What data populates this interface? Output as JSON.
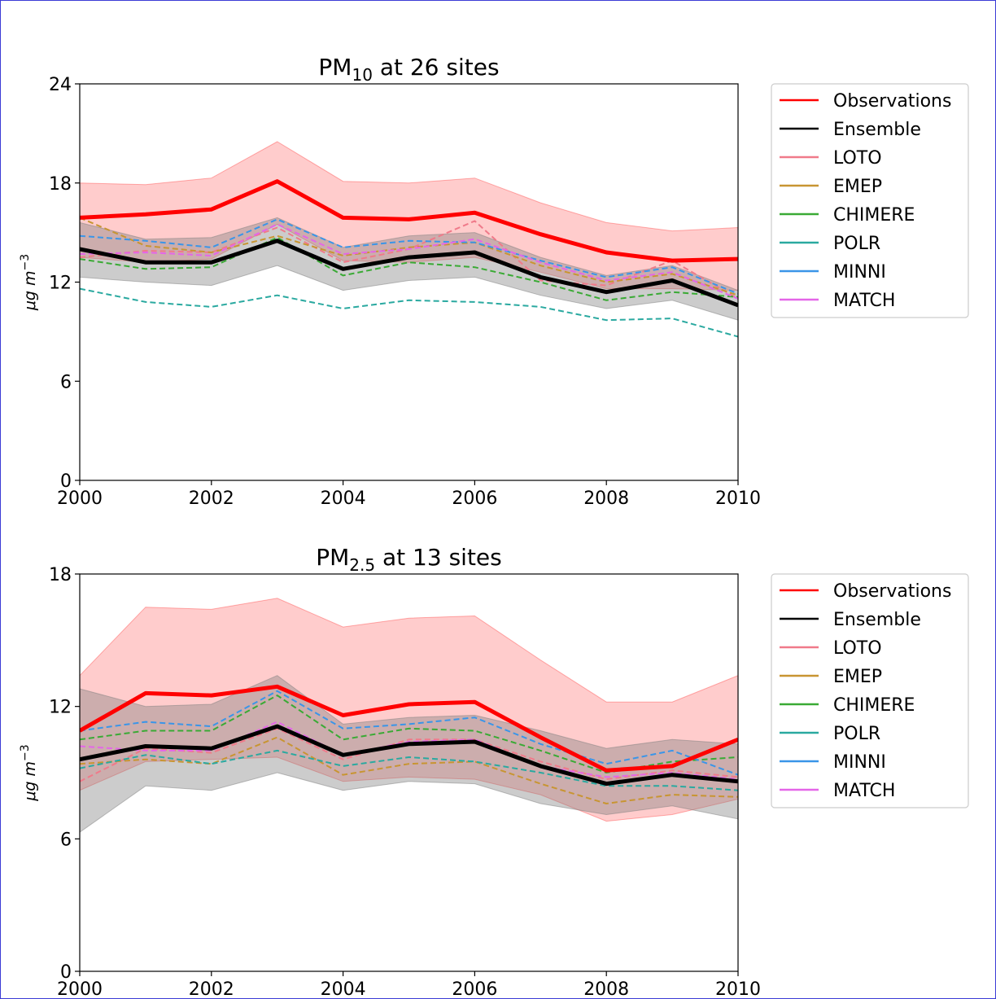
{
  "chart_data": [
    {
      "type": "line",
      "title": {
        "base": "PM",
        "sub": "10",
        "rest": " at 26 sites"
      },
      "ylabel": {
        "base": "μg m",
        "sup": "−3"
      },
      "x": [
        2000,
        2001,
        2002,
        2003,
        2004,
        2005,
        2006,
        2007,
        2008,
        2009,
        2010
      ],
      "xticks": [
        2000,
        2002,
        2004,
        2006,
        2008,
        2010
      ],
      "yticks": [
        0,
        6,
        12,
        18,
        24
      ],
      "xlim": [
        2000,
        2010
      ],
      "ylim": [
        0,
        24
      ],
      "legend_position": "outside right, top",
      "bands": [
        {
          "of": "Observations",
          "color": "#ff0000",
          "opacity": 0.2,
          "lower": [
            13.5,
            13.2,
            13.4,
            15.5,
            13.3,
            13.2,
            13.5,
            12.6,
            11.6,
            11.6,
            11.5
          ],
          "upper": [
            18.0,
            17.9,
            18.3,
            20.5,
            18.1,
            18.0,
            18.3,
            16.8,
            15.6,
            15.1,
            15.3
          ]
        },
        {
          "of": "Ensemble",
          "color": "#808080",
          "opacity": 0.4,
          "lower": [
            12.3,
            12.0,
            11.8,
            13.0,
            11.5,
            12.1,
            12.3,
            11.2,
            10.4,
            10.9,
            9.7
          ],
          "upper": [
            15.6,
            14.6,
            14.7,
            15.9,
            14.1,
            14.8,
            15.0,
            13.5,
            12.4,
            13.0,
            11.5
          ]
        }
      ],
      "series": [
        {
          "name": "Observations",
          "color": "#ff0000",
          "style": "solid",
          "width": 5,
          "values": [
            15.9,
            16.1,
            16.4,
            18.1,
            15.9,
            15.8,
            16.2,
            14.9,
            13.8,
            13.3,
            13.4
          ]
        },
        {
          "name": "Ensemble",
          "color": "#000000",
          "style": "solid",
          "width": 5,
          "values": [
            14.0,
            13.2,
            13.2,
            14.5,
            12.8,
            13.5,
            13.8,
            12.3,
            11.4,
            12.1,
            10.6
          ]
        },
        {
          "name": "LOTO",
          "color": "#f07a8a",
          "style": "dashed",
          "width": 2,
          "values": [
            13.5,
            13.9,
            13.8,
            15.3,
            13.2,
            14.0,
            15.7,
            12.1,
            11.8,
            13.3,
            11.0
          ]
        },
        {
          "name": "EMEP",
          "color": "#c89532",
          "style": "dashed",
          "width": 2,
          "values": [
            15.9,
            14.2,
            13.8,
            14.8,
            13.6,
            14.1,
            14.4,
            13.0,
            12.0,
            12.5,
            11.2
          ]
        },
        {
          "name": "CHIMERE",
          "color": "#3aaa35",
          "style": "dashed",
          "width": 2,
          "values": [
            13.4,
            12.8,
            12.9,
            14.7,
            12.4,
            13.2,
            12.9,
            12.0,
            10.9,
            11.4,
            11.1
          ]
        },
        {
          "name": "POLR",
          "color": "#2aa9a0",
          "style": "dashed",
          "width": 2,
          "values": [
            11.6,
            10.8,
            10.5,
            11.2,
            10.4,
            10.9,
            10.8,
            10.5,
            9.7,
            9.8,
            8.7
          ]
        },
        {
          "name": "MINNI",
          "color": "#3a95e8",
          "style": "dashed",
          "width": 2,
          "values": [
            14.8,
            14.5,
            14.1,
            15.8,
            14.1,
            14.5,
            14.4,
            13.3,
            12.3,
            12.9,
            11.3
          ]
        },
        {
          "name": "MATCH",
          "color": "#e466e8",
          "style": "dashed",
          "width": 2,
          "values": [
            13.7,
            13.8,
            13.6,
            15.5,
            13.7,
            14.0,
            14.6,
            13.2,
            12.1,
            12.6,
            11.0
          ]
        }
      ]
    },
    {
      "type": "line",
      "title": {
        "base": "PM",
        "sub": "2.5",
        "rest": " at 13 sites"
      },
      "ylabel": {
        "base": "μg m",
        "sup": "−3"
      },
      "x": [
        2000,
        2001,
        2002,
        2003,
        2004,
        2005,
        2006,
        2007,
        2008,
        2009,
        2010
      ],
      "xticks": [
        2000,
        2002,
        2004,
        2006,
        2008,
        2010
      ],
      "yticks": [
        0,
        6,
        12,
        18
      ],
      "xlim": [
        2000,
        2010
      ],
      "ylim": [
        0,
        18
      ],
      "legend_position": "outside right, top",
      "bands": [
        {
          "of": "Observations",
          "color": "#ff0000",
          "opacity": 0.2,
          "lower": [
            8.2,
            9.5,
            9.6,
            9.7,
            8.6,
            8.8,
            8.7,
            8.0,
            6.8,
            7.1,
            7.8
          ],
          "upper": [
            13.4,
            16.5,
            16.4,
            16.9,
            15.6,
            16.0,
            16.1,
            14.1,
            12.2,
            12.2,
            13.4
          ]
        },
        {
          "of": "Ensemble",
          "color": "#808080",
          "opacity": 0.4,
          "lower": [
            6.3,
            8.4,
            8.2,
            9.0,
            8.2,
            8.6,
            8.5,
            7.6,
            7.1,
            7.5,
            6.9
          ]
        },
        {
          "of": "Ensemble",
          "color": "#808080",
          "opacity": 0.4,
          "upper": [
            12.8,
            12.0,
            12.1,
            13.4,
            11.2,
            11.5,
            11.6,
            10.9,
            10.1,
            10.5,
            10.3
          ]
        }
      ],
      "series": [
        {
          "name": "Observations",
          "color": "#ff0000",
          "style": "solid",
          "width": 5,
          "values": [
            10.9,
            12.6,
            12.5,
            12.9,
            11.6,
            12.1,
            12.2,
            10.6,
            9.1,
            9.3,
            10.5
          ]
        },
        {
          "name": "Ensemble",
          "color": "#000000",
          "style": "solid",
          "width": 5,
          "values": [
            9.6,
            10.2,
            10.1,
            11.1,
            9.8,
            10.3,
            10.4,
            9.3,
            8.5,
            8.9,
            8.6
          ]
        },
        {
          "name": "LOTO",
          "color": "#f07a8a",
          "style": "dashed",
          "width": 2,
          "values": [
            8.6,
            10.1,
            9.9,
            11.0,
            9.6,
            10.5,
            10.5,
            9.5,
            8.7,
            9.1,
            8.8
          ]
        },
        {
          "name": "EMEP",
          "color": "#c89532",
          "style": "dashed",
          "width": 2,
          "values": [
            9.4,
            9.6,
            9.4,
            10.6,
            8.9,
            9.4,
            9.5,
            8.5,
            7.6,
            8.0,
            7.9
          ]
        },
        {
          "name": "CHIMERE",
          "color": "#3aaa35",
          "style": "dashed",
          "width": 2,
          "values": [
            10.5,
            10.9,
            10.9,
            12.5,
            10.5,
            11.0,
            10.9,
            10.0,
            9.0,
            9.5,
            9.7
          ]
        },
        {
          "name": "POLR",
          "color": "#2aa9a0",
          "style": "dashed",
          "width": 2,
          "values": [
            9.2,
            9.8,
            9.4,
            10.0,
            9.3,
            9.7,
            9.5,
            9.0,
            8.4,
            8.4,
            8.2
          ]
        },
        {
          "name": "MINNI",
          "color": "#3a95e8",
          "style": "dashed",
          "width": 2,
          "values": [
            10.9,
            11.3,
            11.1,
            12.7,
            11.0,
            11.2,
            11.5,
            10.3,
            9.4,
            10.0,
            8.9
          ]
        },
        {
          "name": "MATCH",
          "color": "#e466e8",
          "style": "dashed",
          "width": 2,
          "values": [
            10.2,
            10.0,
            10.0,
            11.3,
            9.8,
            10.4,
            10.5,
            9.3,
            8.8,
            9.0,
            8.7
          ]
        }
      ]
    }
  ]
}
